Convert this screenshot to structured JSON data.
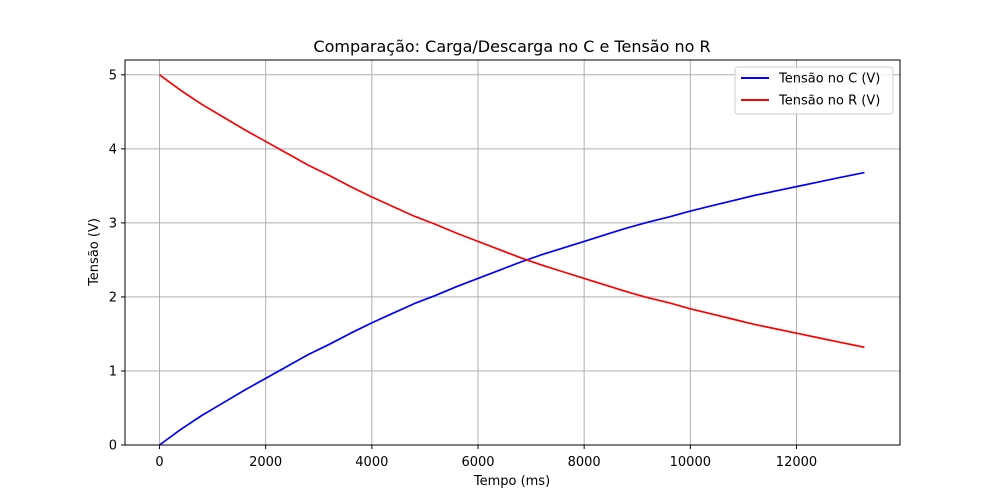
{
  "chart_data": {
    "type": "line",
    "title": "Comparação: Carga/Descarga no C e Tensão no R",
    "xlabel": "Tempo (ms)",
    "ylabel": "Tensão (V)",
    "xlim": [
      -650,
      13950
    ],
    "ylim": [
      0,
      5.2
    ],
    "xticks": [
      0,
      2000,
      4000,
      6000,
      8000,
      10000,
      12000
    ],
    "yticks": [
      0,
      1,
      2,
      3,
      4,
      5
    ],
    "grid": true,
    "legend_position": "top-right",
    "x": [
      0,
      400,
      800,
      1200,
      1600,
      2000,
      2400,
      2800,
      3200,
      3600,
      4000,
      4400,
      4800,
      5200,
      5600,
      6000,
      6400,
      6800,
      7200,
      7600,
      8000,
      8400,
      8800,
      9200,
      9600,
      10000,
      10400,
      10800,
      11200,
      11600,
      12000,
      12400,
      12800,
      13280
    ],
    "series": [
      {
        "name": "Tensão no C (V)",
        "color": "#0000ff",
        "values": [
          0.0,
          0.21,
          0.4,
          0.57,
          0.74,
          0.9,
          1.06,
          1.22,
          1.36,
          1.51,
          1.65,
          1.78,
          1.91,
          2.02,
          2.14,
          2.25,
          2.36,
          2.47,
          2.57,
          2.66,
          2.75,
          2.84,
          2.93,
          3.01,
          3.08,
          3.16,
          3.23,
          3.3,
          3.37,
          3.43,
          3.49,
          3.55,
          3.61,
          3.68
        ]
      },
      {
        "name": "Tensão no R (V)",
        "color": "#ff0000",
        "values": [
          5.0,
          4.79,
          4.6,
          4.43,
          4.26,
          4.1,
          3.94,
          3.78,
          3.64,
          3.49,
          3.35,
          3.22,
          3.09,
          2.98,
          2.86,
          2.75,
          2.64,
          2.53,
          2.43,
          2.34,
          2.25,
          2.16,
          2.07,
          1.99,
          1.92,
          1.84,
          1.77,
          1.7,
          1.63,
          1.57,
          1.51,
          1.45,
          1.39,
          1.32
        ]
      }
    ]
  }
}
